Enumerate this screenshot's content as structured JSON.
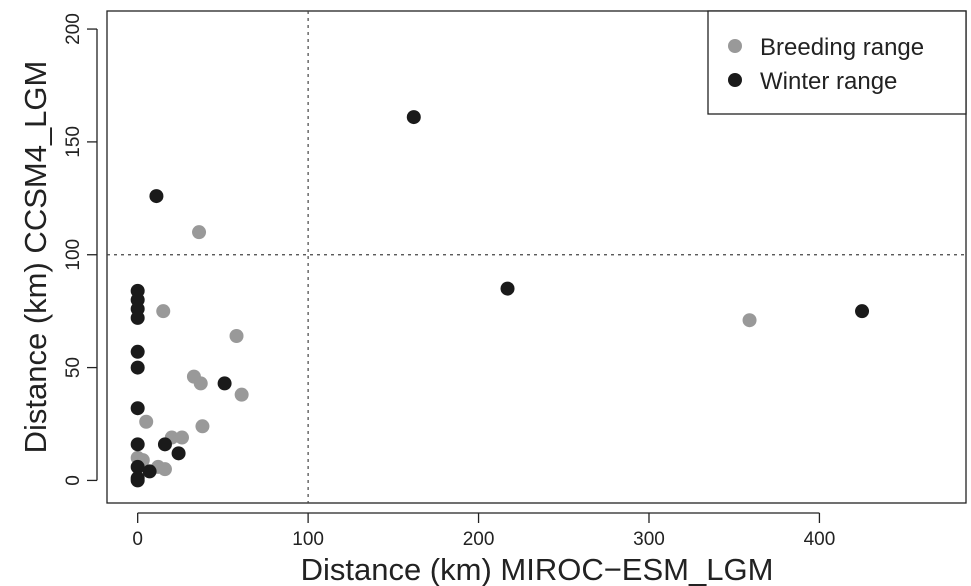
{
  "chart_data": {
    "type": "scatter",
    "xlabel": "Distance (km) MIROC−ESM_LGM",
    "ylabel": "Distance (km) CCSM4_LGM",
    "xlim": [
      -18,
      486
    ],
    "ylim": [
      -10,
      208
    ],
    "x_ticks": [
      0,
      100,
      200,
      300,
      400
    ],
    "y_ticks": [
      0,
      50,
      100,
      150,
      200
    ],
    "reference_lines": {
      "vertical_x": 100,
      "horizontal_y": 100,
      "style": "dotted"
    },
    "legend_position": "top-right",
    "series": [
      {
        "name": "Breeding range",
        "color": "#999999",
        "points": [
          {
            "x": 36,
            "y": 110
          },
          {
            "x": 15,
            "y": 75
          },
          {
            "x": 58,
            "y": 64
          },
          {
            "x": 33,
            "y": 46
          },
          {
            "x": 37,
            "y": 43
          },
          {
            "x": 61,
            "y": 38
          },
          {
            "x": 38,
            "y": 24
          },
          {
            "x": 5,
            "y": 26
          },
          {
            "x": 20,
            "y": 19
          },
          {
            "x": 26,
            "y": 19
          },
          {
            "x": 12,
            "y": 6
          },
          {
            "x": 16,
            "y": 5
          },
          {
            "x": 3,
            "y": 9
          },
          {
            "x": 0,
            "y": 10
          },
          {
            "x": 359,
            "y": 71
          }
        ]
      },
      {
        "name": "Winter range",
        "color": "#1a1a1a",
        "points": [
          {
            "x": 11,
            "y": 126
          },
          {
            "x": 162,
            "y": 161
          },
          {
            "x": 217,
            "y": 85
          },
          {
            "x": 425,
            "y": 75
          },
          {
            "x": 51,
            "y": 43
          },
          {
            "x": 16,
            "y": 16
          },
          {
            "x": 24,
            "y": 12
          },
          {
            "x": 0,
            "y": 84
          },
          {
            "x": 0,
            "y": 80
          },
          {
            "x": 0,
            "y": 76
          },
          {
            "x": 0,
            "y": 72
          },
          {
            "x": 0,
            "y": 57
          },
          {
            "x": 0,
            "y": 50
          },
          {
            "x": 0,
            "y": 32
          },
          {
            "x": 0,
            "y": 16
          },
          {
            "x": 0,
            "y": 6
          },
          {
            "x": 7,
            "y": 4
          },
          {
            "x": 0,
            "y": 1
          },
          {
            "x": 0,
            "y": 0
          }
        ]
      }
    ]
  }
}
